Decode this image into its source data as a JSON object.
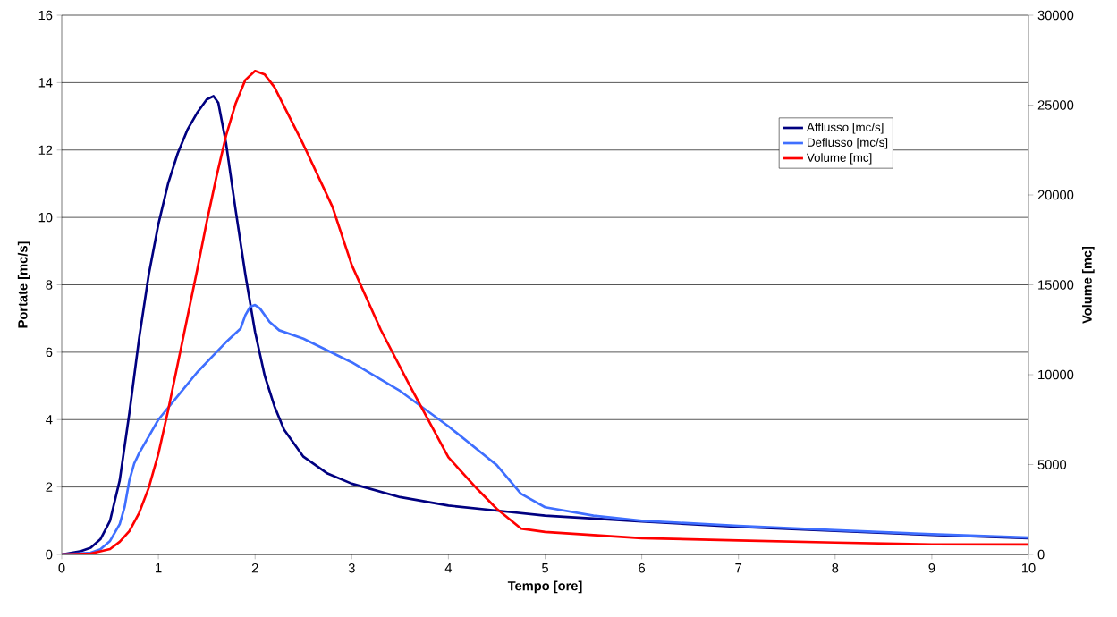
{
  "chart_data": {
    "type": "line",
    "xlabel": "Tempo [ore]",
    "ylabel": "Portate [mc/s]",
    "y2label": "Volume [mc]",
    "xlim": [
      0,
      10
    ],
    "xticks": [
      0,
      1,
      2,
      3,
      4,
      5,
      6,
      7,
      8,
      9,
      10
    ],
    "ylim": [
      0,
      16
    ],
    "yticks": [
      0,
      2,
      4,
      6,
      8,
      10,
      12,
      14,
      16
    ],
    "y2lim": [
      0,
      30000
    ],
    "y2ticks": [
      0,
      5000,
      10000,
      15000,
      20000,
      25000,
      30000
    ],
    "grid": "y",
    "legend": "top right",
    "marker": "none",
    "line_style": "solid",
    "series": [
      {
        "name": "Afflusso [mc/s]",
        "color": "#000080",
        "x": [
          0,
          0.2,
          0.3,
          0.4,
          0.5,
          0.6,
          0.7,
          0.8,
          0.9,
          1.0,
          1.1,
          1.2,
          1.3,
          1.4,
          1.5,
          1.57,
          1.62,
          1.7,
          1.8,
          1.9,
          2.0,
          2.1,
          2.2,
          2.3,
          2.5,
          2.75,
          3.0,
          3.5,
          4.0,
          4.5,
          5,
          6,
          7,
          8,
          9,
          10
        ],
        "values": [
          0,
          0.1,
          0.2,
          0.45,
          1.0,
          2.2,
          4.2,
          6.4,
          8.3,
          9.8,
          11.0,
          11.9,
          12.6,
          13.1,
          13.5,
          13.6,
          13.4,
          12.2,
          10.2,
          8.3,
          6.6,
          5.3,
          4.4,
          3.7,
          2.9,
          2.4,
          2.1,
          1.7,
          1.45,
          1.3,
          1.15,
          0.98,
          0.82,
          0.7,
          0.58,
          0.48
        ]
      },
      {
        "name": "Deflusso [mc/s]",
        "color": "#3f6fff",
        "x": [
          0,
          0.3,
          0.4,
          0.5,
          0.6,
          0.65,
          0.7,
          0.75,
          0.8,
          0.9,
          1.0,
          1.2,
          1.4,
          1.6,
          1.7,
          1.85,
          1.9,
          1.95,
          2.0,
          2.05,
          2.15,
          2.25,
          2.5,
          3.0,
          3.5,
          4.0,
          4.5,
          4.75,
          5,
          5.5,
          6,
          7,
          8,
          9,
          10
        ],
        "values": [
          0,
          0.05,
          0.15,
          0.4,
          0.9,
          1.4,
          2.2,
          2.7,
          3.0,
          3.5,
          4.0,
          4.7,
          5.4,
          6.0,
          6.3,
          6.7,
          7.1,
          7.35,
          7.4,
          7.3,
          6.9,
          6.65,
          6.4,
          5.7,
          4.85,
          3.8,
          2.65,
          1.8,
          1.4,
          1.15,
          1.0,
          0.85,
          0.72,
          0.6,
          0.5
        ]
      },
      {
        "name": "Volume [mc]",
        "color": "#ff0000",
        "axis": "y2",
        "x": [
          0,
          0.3,
          0.5,
          0.6,
          0.7,
          0.8,
          0.9,
          1.0,
          1.1,
          1.2,
          1.3,
          1.4,
          1.5,
          1.6,
          1.7,
          1.8,
          1.9,
          2.0,
          2.1,
          2.2,
          2.5,
          2.8,
          3.0,
          3.3,
          3.6,
          4.0,
          4.3,
          4.5,
          4.75,
          5,
          6,
          7,
          8,
          9,
          10
        ],
        "values": [
          0,
          50,
          300,
          700,
          1300,
          2300,
          3700,
          5600,
          8000,
          10600,
          13200,
          15800,
          18500,
          21000,
          23300,
          25100,
          26400,
          26900,
          26700,
          26000,
          22800,
          19350,
          16100,
          12500,
          9400,
          5400,
          3630,
          2540,
          1440,
          1250,
          900,
          780,
          660,
          560,
          550
        ]
      }
    ]
  }
}
